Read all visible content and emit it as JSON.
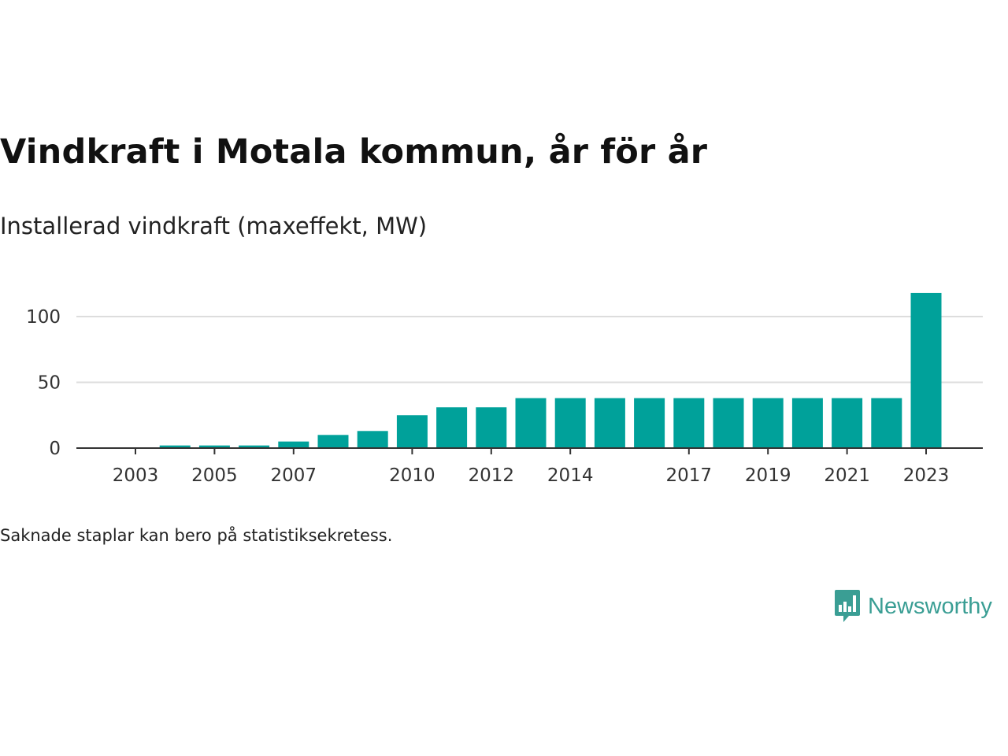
{
  "title": "Vindkraft i Motala kommun, år för år",
  "subtitle": "Installerad vindkraft (maxeffekt, MW)",
  "note": "Saknade staplar kan bero på statistiksekretess.",
  "brand": {
    "name": "Newsworthy",
    "color": "#3a9e94",
    "icon": "newsworthy-logo-icon"
  },
  "colors": {
    "bar": "#00a19a",
    "grid": "#dddddd",
    "axis": "#333333"
  },
  "chart_data": {
    "type": "bar",
    "categories": [
      "2003",
      "2004",
      "2005",
      "2006",
      "2007",
      "2008",
      "2009",
      "2010",
      "2011",
      "2012",
      "2013",
      "2014",
      "2015",
      "2016",
      "2017",
      "2018",
      "2019",
      "2020",
      "2021",
      "2022",
      "2023"
    ],
    "values": [
      0,
      2,
      2,
      2,
      5,
      10,
      13,
      25,
      31,
      31,
      38,
      38,
      38,
      38,
      38,
      38,
      38,
      38,
      38,
      38,
      118
    ],
    "x_tick_labels": [
      "2003",
      "2005",
      "2007",
      "2010",
      "2012",
      "2014",
      "2017",
      "2019",
      "2021",
      "2023"
    ],
    "y_ticks": [
      0,
      50,
      100
    ],
    "ylim": [
      0,
      120
    ],
    "grid": true
  }
}
